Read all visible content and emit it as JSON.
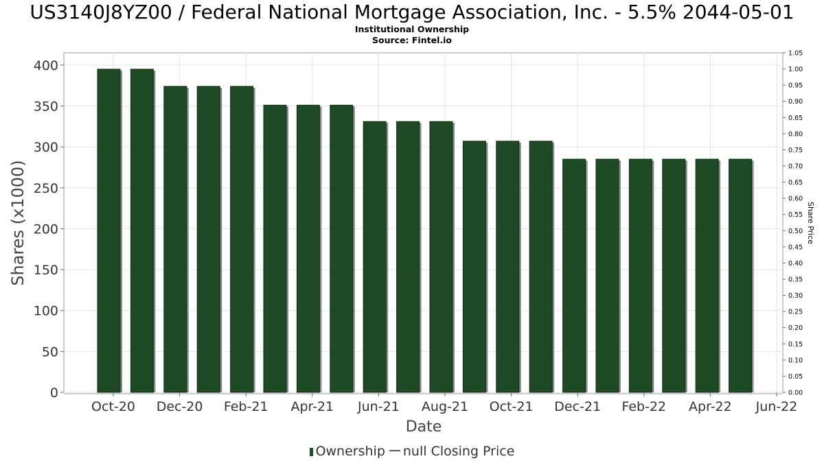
{
  "chart_data": {
    "type": "bar",
    "title": "US3140J8YZ00 / Federal National Mortgage Association, Inc. - 5.5% 2044-05-01",
    "subtitle": "Institutional Ownership",
    "source": "Source: Fintel.io",
    "xlabel": "Date",
    "ylabel": "Shares (x1000)",
    "y2label": "Share Price",
    "ylim": [
      0,
      415
    ],
    "y2lim": [
      0,
      1.05
    ],
    "yticks": [
      "0",
      "50",
      "100",
      "150",
      "200",
      "250",
      "300",
      "350",
      "400"
    ],
    "y2ticks": [
      "0.00",
      "0.05",
      "0.10",
      "0.15",
      "0.20",
      "0.25",
      "0.30",
      "0.35",
      "0.40",
      "0.45",
      "0.50",
      "0.55",
      "0.60",
      "0.65",
      "0.70",
      "0.75",
      "0.80",
      "0.85",
      "0.90",
      "0.95",
      "1.00",
      "1.05"
    ],
    "xticks": [
      "Oct-20",
      "Dec-20",
      "Feb-21",
      "Apr-21",
      "Jun-21",
      "Aug-21",
      "Oct-21",
      "Dec-21",
      "Feb-22",
      "Apr-22",
      "Jun-22"
    ],
    "grid": true,
    "series": [
      {
        "name": "Ownership",
        "color": "#1e4a26",
        "values": [
          395,
          395,
          374,
          374,
          374,
          351,
          351,
          351,
          331,
          331,
          331,
          307,
          307,
          307,
          285,
          285,
          285,
          285,
          285,
          285
        ]
      }
    ],
    "legend": {
      "position": "bottom-center",
      "items": [
        "Ownership",
        "null Closing Price"
      ]
    }
  }
}
